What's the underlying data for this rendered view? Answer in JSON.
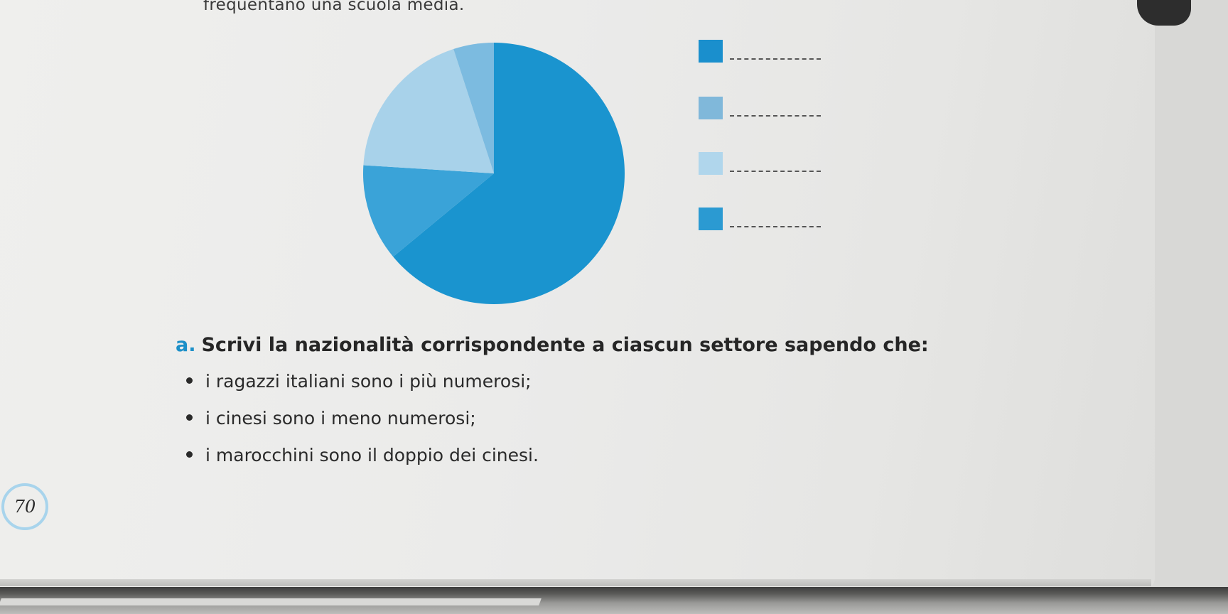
{
  "header": {
    "text": "frequentano una scuola media."
  },
  "chart_data": {
    "type": "pie",
    "title": "",
    "values": [
      64,
      12,
      19,
      5
    ],
    "colors": [
      "#1a94cf",
      "#3aa3d8",
      "#a8d2ea",
      "#7cbbe0"
    ],
    "start_angle_deg": 0,
    "direction": "clockwise"
  },
  "legend": {
    "items": [
      {
        "color": "#1a8fcd",
        "answer": ""
      },
      {
        "color": "#80b8da",
        "answer": ""
      },
      {
        "color": "#b0d6ec",
        "answer": ""
      },
      {
        "color": "#2b9ad2",
        "answer": ""
      }
    ]
  },
  "question": {
    "letter": "a.",
    "text": "Scrivi la nazionalità corrispondente a ciascun settore sapendo che:",
    "bullets": [
      "i ragazzi italiani sono i più numerosi;",
      "i cinesi sono i meno numerosi;",
      "i marocchini sono il doppio dei cinesi."
    ]
  },
  "page": {
    "number": "70"
  }
}
